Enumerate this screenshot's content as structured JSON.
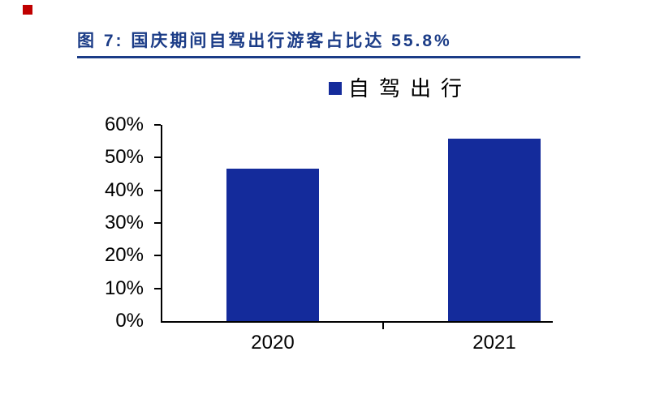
{
  "page": {
    "marker_color": "#c00000"
  },
  "title": {
    "text": "图 7:  国庆期间自驾出行游客占比达 55.8%",
    "color": "#1b3c87",
    "rule_color": "#1b3c87"
  },
  "legend": {
    "label": "自驾出行",
    "swatch_color": "#142b9b"
  },
  "chart_data": {
    "type": "bar",
    "title": "图 7: 国庆期间自驾出行游客占比达 55.8%",
    "categories": [
      "2020",
      "2021"
    ],
    "series": [
      {
        "name": "自驾出行",
        "values": [
          46.5,
          55.8
        ]
      }
    ],
    "ylabel": "",
    "xlabel": "",
    "ylim": [
      0,
      60
    ],
    "ytick_step": 10,
    "yticks": [
      "60%",
      "50%",
      "40%",
      "30%",
      "20%",
      "10%",
      "0%"
    ],
    "grid": false,
    "legend_position": "top-center",
    "bar_color": "#142b9b",
    "axis_color": "#000000",
    "tick_label_color": "#000000"
  }
}
